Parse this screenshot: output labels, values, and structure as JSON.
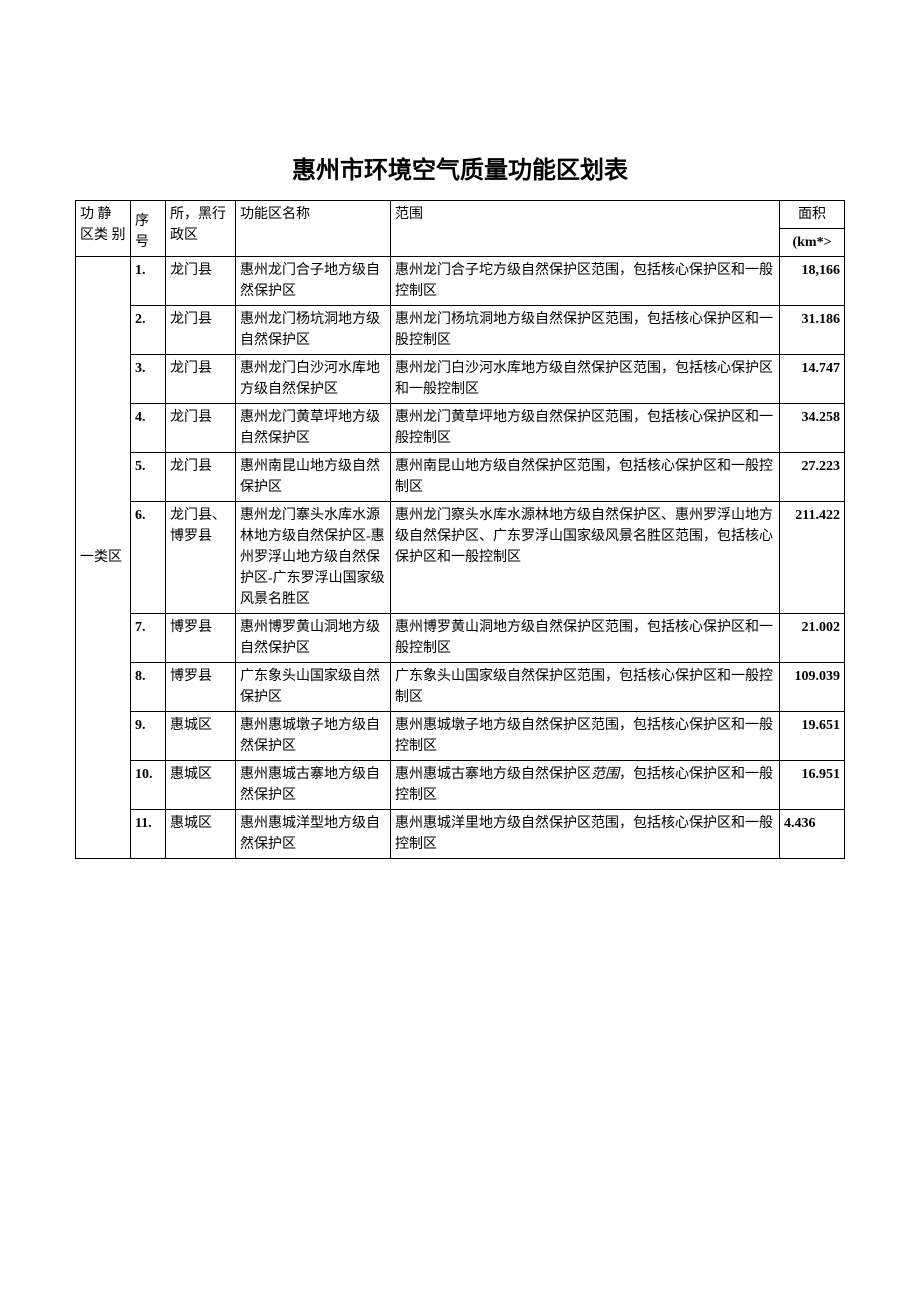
{
  "title": "惠州市环境空气质量功能区划表",
  "headers": {
    "category": "功 静 区类 别",
    "seq": "序号",
    "district": "所，黑行政区",
    "name": "功能区名称",
    "scope": "范围",
    "area": "面积",
    "area_unit": "(km*>"
  },
  "category_label": "一类区",
  "rows": [
    {
      "seq": "1.",
      "district": "龙门县",
      "name": "惠州龙门合子地方级自然保护区",
      "scope": "惠州龙门合子坨方级自然保护区范围，包括核心保护区和一般控制区",
      "area": "18,166"
    },
    {
      "seq": "2.",
      "district": "龙门县",
      "name": "惠州龙门杨坑洞地方级自然保护区",
      "scope": "惠州龙门杨坑洞地方级自然保护区范围，包括核心保护区和一股控制区",
      "area": "31.186"
    },
    {
      "seq": "3.",
      "district": "龙门县",
      "name": "惠州龙门白沙河水库地方级自然保护区",
      "scope": "惠州龙门白沙河水库地方级自然保护区范围，包括核心保护区和一般控制区",
      "area": "14.747"
    },
    {
      "seq": "4.",
      "district": "龙门县",
      "name": "惠州龙门黄草坪地方级自然保护区",
      "scope": "惠州龙门黄草坪地方级自然保护区范围，包括核心保护区和一般控制区",
      "area": "34.258"
    },
    {
      "seq": "5.",
      "district": "龙门县",
      "name": "惠州南昆山地方级自然保护区",
      "scope": "惠州南昆山地方级自然保护区范围，包括核心保护区和一般控制区",
      "area": "27.223"
    },
    {
      "seq": "6.",
      "district": "龙门县、博罗县",
      "name": "惠州龙门寨头水库水源林地方级自然保护区-惠州罗浮山地方级自然保护区-广东罗浮山国家级风景名胜区",
      "scope": "惠州龙门察头水库水源林地方级自然保护区、惠州罗浮山地方级自然保护区、广东罗浮山国家级风景名胜区范围，包括核心保护区和一般控制区",
      "area": "211.422"
    },
    {
      "seq": "7.",
      "district": "博罗县",
      "name": "惠州博罗黄山洞地方级自然保护区",
      "scope": "惠州博罗黄山洞地方级自然保护区范围，包括核心保护区和一般控制区",
      "area": "21.002"
    },
    {
      "seq": "8.",
      "district": "博罗县",
      "name": "广东象头山国家级自然保护区",
      "scope": "广东象头山国家级自然保护区范围，包括核心保护区和一般控制区",
      "area": "109.039"
    },
    {
      "seq": "9.",
      "district": "惠城区",
      "name": "惠州惠城墩子地方级自然保护区",
      "scope": "惠州惠城墩子地方级自然保护区范围，包括核心保护区和一般控制区",
      "area": "19.651"
    },
    {
      "seq": "10.",
      "district": "惠城区",
      "name": "惠州惠城古寨地方级自然保护区",
      "scope_prefix": "惠州惠城古寨地方级自然保护区",
      "scope_italic": "范围",
      "scope_suffix": "，包括核心保护区和一般控制区",
      "area": "16.951"
    },
    {
      "seq": "11.",
      "district": "惠城区",
      "name": "惠州惠城洋型地方级自然保护区",
      "scope": "惠州惠城洋里地方级自然保护区范围，包括核心保护区和一般控制区",
      "area": "4.436"
    }
  ],
  "styling": {
    "background_color": "#ffffff",
    "border_color": "#000000",
    "title_fontsize": 24,
    "cell_fontsize": 14,
    "font_family": "SimSun"
  }
}
